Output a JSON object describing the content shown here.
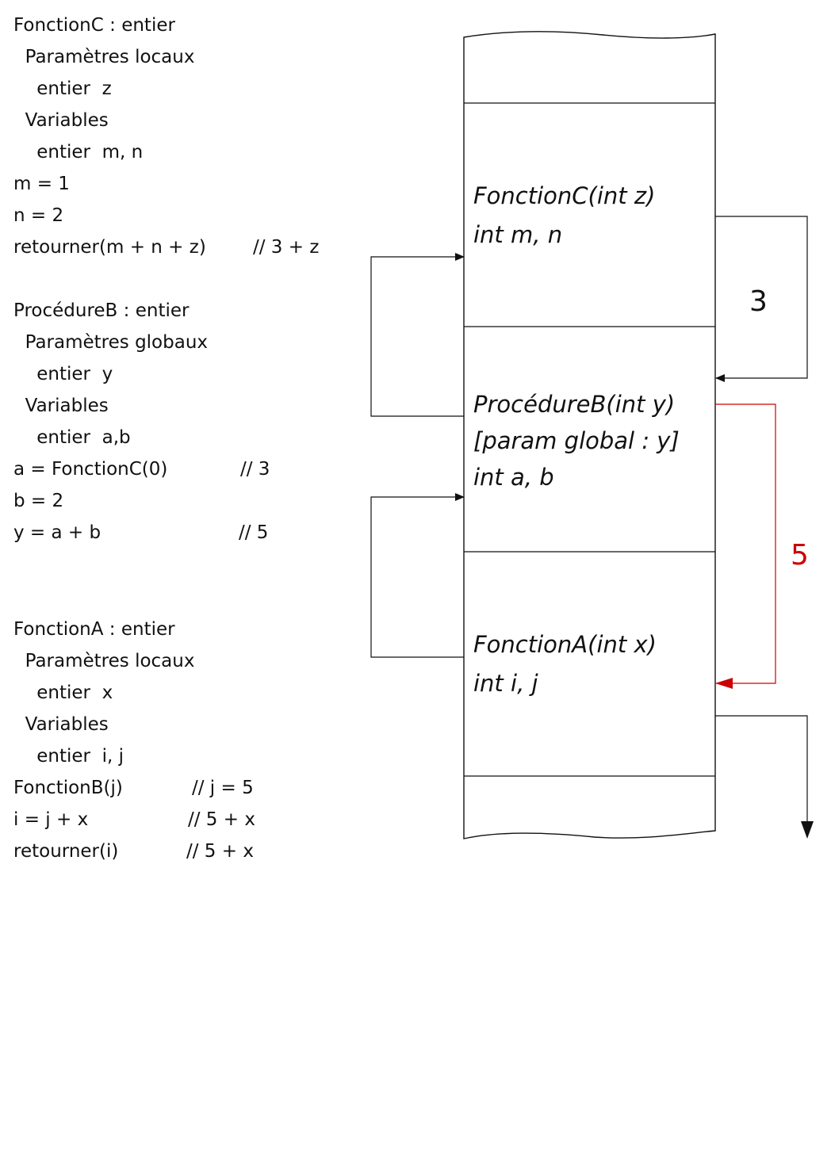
{
  "code": {
    "fonctionC": {
      "header": "FonctionC : entier",
      "params_title": "  Paramètres locaux",
      "param": "    entier  z",
      "vars_title": "  Variables",
      "vars": "    entier  m, n",
      "l1": "m = 1",
      "l2": "n = 2",
      "l3": "retourner(m + n + z)",
      "l3_comment": "// 3 + z"
    },
    "procedureB": {
      "header": "ProcédureB : entier",
      "params_title": "  Paramètres globaux",
      "param": "    entier  y",
      "vars_title": "  Variables",
      "vars": "    entier  a,b",
      "l1": "a = FonctionC(0)",
      "l1_comment": "// 3",
      "l2": "b = 2",
      "l3": "y = a + b",
      "l3_comment": "// 5"
    },
    "fonctionA": {
      "header": "FonctionA : entier",
      "params_title": "  Paramètres locaux",
      "param": "    entier  x",
      "vars_title": "  Variables",
      "vars": "    entier  i, j",
      "l1": "FonctionB(j)",
      "l1_comment": "// j = 5",
      "l2": "i = j + x",
      "l2_comment": "// 5 + x",
      "l3": "retourner(i)",
      "l3_comment": "// 5 + x"
    }
  },
  "stack": {
    "frameC": {
      "line1": "FonctionC(int z)",
      "line2": "int m, n"
    },
    "frameB": {
      "line1": "ProcédureB(int y)",
      "line2": "[param global : y]",
      "line3": "int a, b"
    },
    "frameA": {
      "line1": "FonctionA(int x)",
      "line2": "int i, j"
    },
    "return_c_value": "3",
    "return_b_value": "5"
  },
  "colors": {
    "line": "#111111",
    "highlight": "#cc0000"
  }
}
